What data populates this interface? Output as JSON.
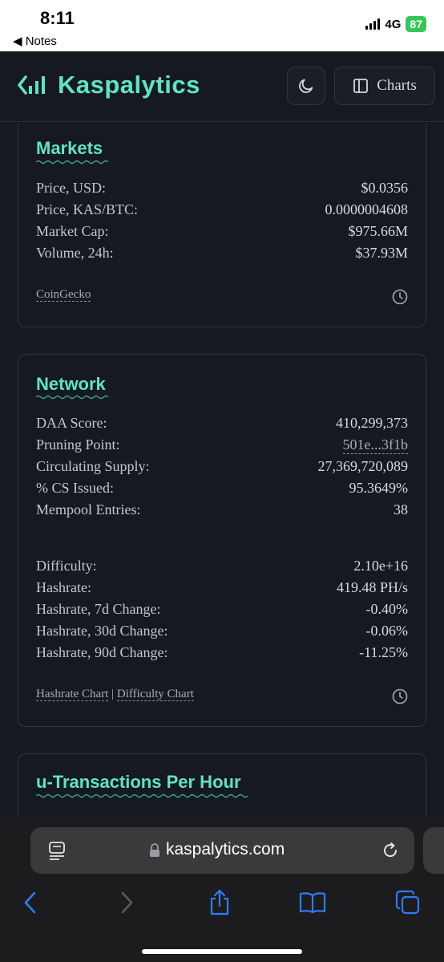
{
  "status_bar": {
    "time": "8:11",
    "back_label": "◀ Notes",
    "network": "4G",
    "battery": "87"
  },
  "header": {
    "app_name": "Kaspalytics",
    "charts_label": "Charts",
    "accent_color": "#5ee4c3"
  },
  "markets": {
    "title": "Markets",
    "rows": [
      {
        "label": "Price, USD:",
        "value": "$0.0356"
      },
      {
        "label": "Price, KAS/BTC:",
        "value": "0.0000004608"
      },
      {
        "label": "Market Cap:",
        "value": "$975.66M"
      },
      {
        "label": "Volume, 24h:",
        "value": "$37.93M"
      }
    ],
    "source": "CoinGecko"
  },
  "network": {
    "title": "Network",
    "rows": [
      {
        "label": "DAA Score:",
        "value": "410,299,373"
      },
      {
        "label": "Pruning Point:",
        "value": "501e...3f1b"
      },
      {
        "label": "Circulating Supply:",
        "value": "27,369,720,089"
      },
      {
        "label": "% CS Issued:",
        "value": "95.3649%"
      },
      {
        "label": "Mempool Entries:",
        "value": "38"
      }
    ],
    "mining_rows": [
      {
        "label": "Difficulty:",
        "value": "2.10e+16"
      },
      {
        "label": "Hashrate:",
        "value": "419.48 PH/s"
      },
      {
        "label": "Hashrate, 7d Change:",
        "value": "-0.40%"
      },
      {
        "label": "Hashrate, 30d Change:",
        "value": "-0.06%"
      },
      {
        "label": "Hashrate, 90d Change:",
        "value": "-11.25%"
      }
    ],
    "hashrate_chart_link": "Hashrate Chart",
    "separator": "|",
    "difficulty_chart_link": "Difficulty Chart"
  },
  "tx_card": {
    "title": "u-Transactions Per Hour"
  },
  "safari": {
    "url": "kaspalytics.com"
  }
}
